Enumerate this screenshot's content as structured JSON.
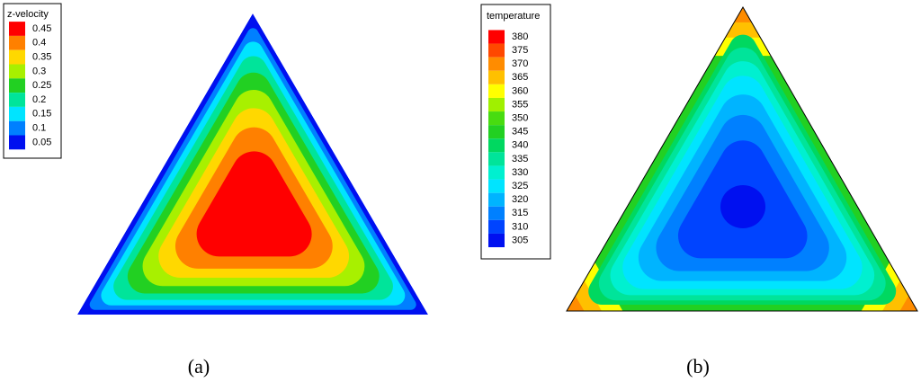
{
  "panels": [
    {
      "caption": "(a)",
      "legend": {
        "title": "z-velocity",
        "levels": [
          {
            "label": "0.45",
            "color": "#ff0000"
          },
          {
            "label": "0.4",
            "color": "#ff8000"
          },
          {
            "label": "0.35",
            "color": "#ffd800"
          },
          {
            "label": "0.3",
            "color": "#a8f000"
          },
          {
            "label": "0.25",
            "color": "#22d022"
          },
          {
            "label": "0.2",
            "color": "#00e49a"
          },
          {
            "label": "0.15",
            "color": "#00e4ff"
          },
          {
            "label": "0.1",
            "color": "#0080ff"
          },
          {
            "label": "0.05",
            "color": "#0010f0"
          }
        ]
      }
    },
    {
      "caption": "(b)",
      "legend": {
        "title": "temperature",
        "levels": [
          {
            "label": "380",
            "color": "#ff0000"
          },
          {
            "label": "375",
            "color": "#ff4800"
          },
          {
            "label": "370",
            "color": "#ff8c00"
          },
          {
            "label": "365",
            "color": "#ffc000"
          },
          {
            "label": "360",
            "color": "#ffff00"
          },
          {
            "label": "355",
            "color": "#a0f000"
          },
          {
            "label": "350",
            "color": "#48dc10"
          },
          {
            "label": "345",
            "color": "#22d022"
          },
          {
            "label": "340",
            "color": "#00d860"
          },
          {
            "label": "335",
            "color": "#00e49a"
          },
          {
            "label": "330",
            "color": "#00f0d0"
          },
          {
            "label": "325",
            "color": "#00e4ff"
          },
          {
            "label": "320",
            "color": "#00b4ff"
          },
          {
            "label": "315",
            "color": "#0080ff"
          },
          {
            "label": "310",
            "color": "#0044ff"
          },
          {
            "label": "305",
            "color": "#0010f0"
          }
        ]
      }
    }
  ]
}
